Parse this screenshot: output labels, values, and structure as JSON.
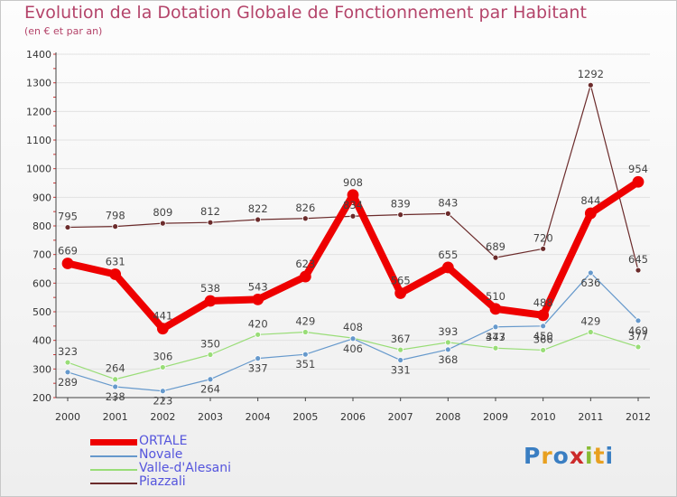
{
  "colors": {
    "title": "#b4446a",
    "ORTALE": "#ee0000",
    "Novale": "#6699cc",
    "Valle-d'Alesani": "#99dd77",
    "Piazzali": "#6b2b2b",
    "legend_text": "#5555dd"
  },
  "chart_data": {
    "type": "line",
    "title": "Evolution de la Dotation Globale de Fonctionnement par Habitant",
    "subtitle": "(en € et par an)",
    "xlabel": "",
    "ylabel": "",
    "ylim": [
      200,
      1400
    ],
    "yticks": [
      200,
      300,
      400,
      500,
      600,
      700,
      800,
      900,
      1000,
      1100,
      1200,
      1300,
      1400
    ],
    "categories": [
      "2000",
      "2001",
      "2002",
      "2003",
      "2004",
      "2005",
      "2006",
      "2007",
      "2008",
      "2009",
      "2010",
      "2011",
      "2012"
    ],
    "series": [
      {
        "name": "Piazzali",
        "values": [
          795,
          798,
          809,
          812,
          822,
          826,
          834,
          839,
          843,
          689,
          720,
          1292,
          645
        ]
      },
      {
        "name": "Valle-d'Alesani",
        "values": [
          323,
          264,
          306,
          350,
          420,
          429,
          408,
          367,
          393,
          373,
          366,
          429,
          377
        ]
      },
      {
        "name": "Novale",
        "values": [
          289,
          238,
          223,
          264,
          337,
          351,
          406,
          331,
          368,
          447,
          450,
          636,
          469
        ]
      },
      {
        "name": "ORTALE",
        "values": [
          669,
          631,
          441,
          538,
          543,
          623,
          908,
          565,
          655,
          510,
          488,
          844,
          954
        ]
      }
    ],
    "legend": [
      "ORTALE",
      "Novale",
      "Valle-d'Alesani",
      "Piazzali"
    ],
    "legend_position": "bottom-left"
  },
  "logo": {
    "letters": [
      "P",
      "r",
      "o",
      "x",
      "i",
      "t",
      "i"
    ]
  }
}
